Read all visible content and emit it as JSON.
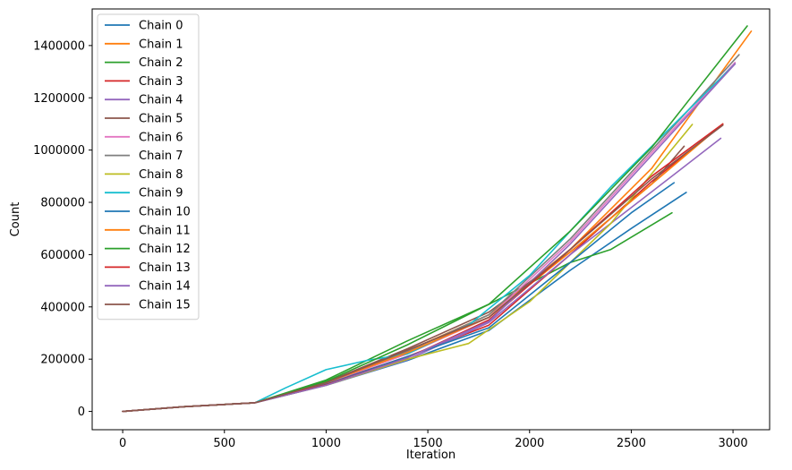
{
  "chart_data": {
    "type": "line",
    "xlabel": "Iteration",
    "ylabel": "Count",
    "xlim": [
      -150,
      3180
    ],
    "ylim": [
      -70000,
      1540000
    ],
    "xticks": [
      0,
      500,
      1000,
      1500,
      2000,
      2500,
      3000
    ],
    "yticks": [
      0,
      200000,
      400000,
      600000,
      800000,
      1000000,
      1200000,
      1400000
    ],
    "legend_position": "upper-left",
    "series": [
      {
        "name": "Chain 0",
        "color": "#1f77b4",
        "x": [
          0,
          300,
          650,
          1000,
          1400,
          1800,
          2200,
          2500,
          2770
        ],
        "y": [
          0,
          18000,
          33000,
          100000,
          195000,
          310000,
          540000,
          700000,
          838000
        ]
      },
      {
        "name": "Chain 1",
        "color": "#ff7f0e",
        "x": [
          0,
          300,
          650,
          1000,
          1400,
          1800,
          2200,
          2600,
          3090
        ],
        "y": [
          0,
          18000,
          33000,
          112000,
          232000,
          370000,
          620000,
          930000,
          1455000
        ]
      },
      {
        "name": "Chain 2",
        "color": "#2ca02c",
        "x": [
          0,
          300,
          650,
          1000,
          1400,
          1800,
          2200,
          2400,
          2700
        ],
        "y": [
          0,
          18000,
          33000,
          120000,
          270000,
          410000,
          570000,
          620000,
          760000
        ]
      },
      {
        "name": "Chain 3",
        "color": "#d62728",
        "x": [
          0,
          300,
          650,
          1000,
          1400,
          1800,
          2200,
          2600,
          2950
        ],
        "y": [
          0,
          18000,
          33000,
          106000,
          210000,
          330000,
          600000,
          880000,
          1098000
        ]
      },
      {
        "name": "Chain 4",
        "color": "#9467bd",
        "x": [
          0,
          300,
          650,
          1000,
          1400,
          1800,
          2200,
          2600,
          2940
        ],
        "y": [
          0,
          18000,
          33000,
          100000,
          198000,
          340000,
          600000,
          840000,
          1045000
        ]
      },
      {
        "name": "Chain 5",
        "color": "#8c564b",
        "x": [
          0,
          300,
          650,
          1000,
          1400,
          1800,
          2200,
          2600,
          2760
        ],
        "y": [
          0,
          18000,
          33000,
          112000,
          240000,
          380000,
          610000,
          870000,
          1015000
        ]
      },
      {
        "name": "Chain 6",
        "color": "#e377c2",
        "x": [
          0,
          300,
          650,
          1000,
          1400,
          1800,
          2200,
          2600,
          3010
        ],
        "y": [
          0,
          18000,
          33000,
          108000,
          220000,
          360000,
          650000,
          990000,
          1335000
        ]
      },
      {
        "name": "Chain 7",
        "color": "#7f7f7f",
        "x": [
          0,
          300,
          650,
          1000,
          1400,
          1800,
          2200,
          2600,
          3030
        ],
        "y": [
          0,
          18000,
          33000,
          110000,
          230000,
          370000,
          660000,
          1000000,
          1365000
        ]
      },
      {
        "name": "Chain 8",
        "color": "#bcbd22",
        "x": [
          0,
          300,
          650,
          1000,
          1400,
          1700,
          2000,
          2400,
          2800
        ],
        "y": [
          0,
          18000,
          33000,
          100000,
          200000,
          260000,
          420000,
          720000,
          1098000
        ]
      },
      {
        "name": "Chain 9",
        "color": "#17becf",
        "x": [
          0,
          300,
          650,
          800,
          1000,
          1200,
          1400,
          1700,
          2000,
          2400,
          3010
        ],
        "y": [
          0,
          18000,
          33000,
          90000,
          160000,
          195000,
          220000,
          330000,
          520000,
          860000,
          1330000
        ]
      },
      {
        "name": "Chain 10",
        "color": "#1f77b4",
        "x": [
          0,
          300,
          650,
          1000,
          1400,
          1800,
          2200,
          2500,
          2710
        ],
        "y": [
          0,
          18000,
          33000,
          104000,
          210000,
          320000,
          570000,
          760000,
          875000
        ]
      },
      {
        "name": "Chain 11",
        "color": "#ff7f0e",
        "x": [
          0,
          300,
          650,
          1000,
          1400,
          1800,
          2200,
          2600,
          2950
        ],
        "y": [
          0,
          18000,
          33000,
          110000,
          225000,
          360000,
          610000,
          870000,
          1100000
        ]
      },
      {
        "name": "Chain 12",
        "color": "#2ca02c",
        "x": [
          0,
          300,
          650,
          1000,
          1400,
          1800,
          2200,
          2600,
          3070
        ],
        "y": [
          0,
          18000,
          33000,
          115000,
          255000,
          410000,
          690000,
          1010000,
          1475000
        ]
      },
      {
        "name": "Chain 13",
        "color": "#d62728",
        "x": [
          0,
          300,
          650,
          1000,
          1400,
          1800,
          2200,
          2600,
          2950
        ],
        "y": [
          0,
          18000,
          33000,
          102000,
          205000,
          350000,
          620000,
          900000,
          1100000
        ]
      },
      {
        "name": "Chain 14",
        "color": "#9467bd",
        "x": [
          0,
          300,
          650,
          1000,
          1400,
          1800,
          2200,
          2600,
          3010
        ],
        "y": [
          0,
          18000,
          33000,
          100000,
          205000,
          345000,
          640000,
          980000,
          1330000
        ]
      },
      {
        "name": "Chain 15",
        "color": "#8c564b",
        "x": [
          0,
          300,
          650,
          1000,
          1400,
          1800,
          2200,
          2600,
          2950
        ],
        "y": [
          0,
          18000,
          33000,
          110000,
          235000,
          360000,
          620000,
          890000,
          1095000
        ]
      }
    ]
  }
}
